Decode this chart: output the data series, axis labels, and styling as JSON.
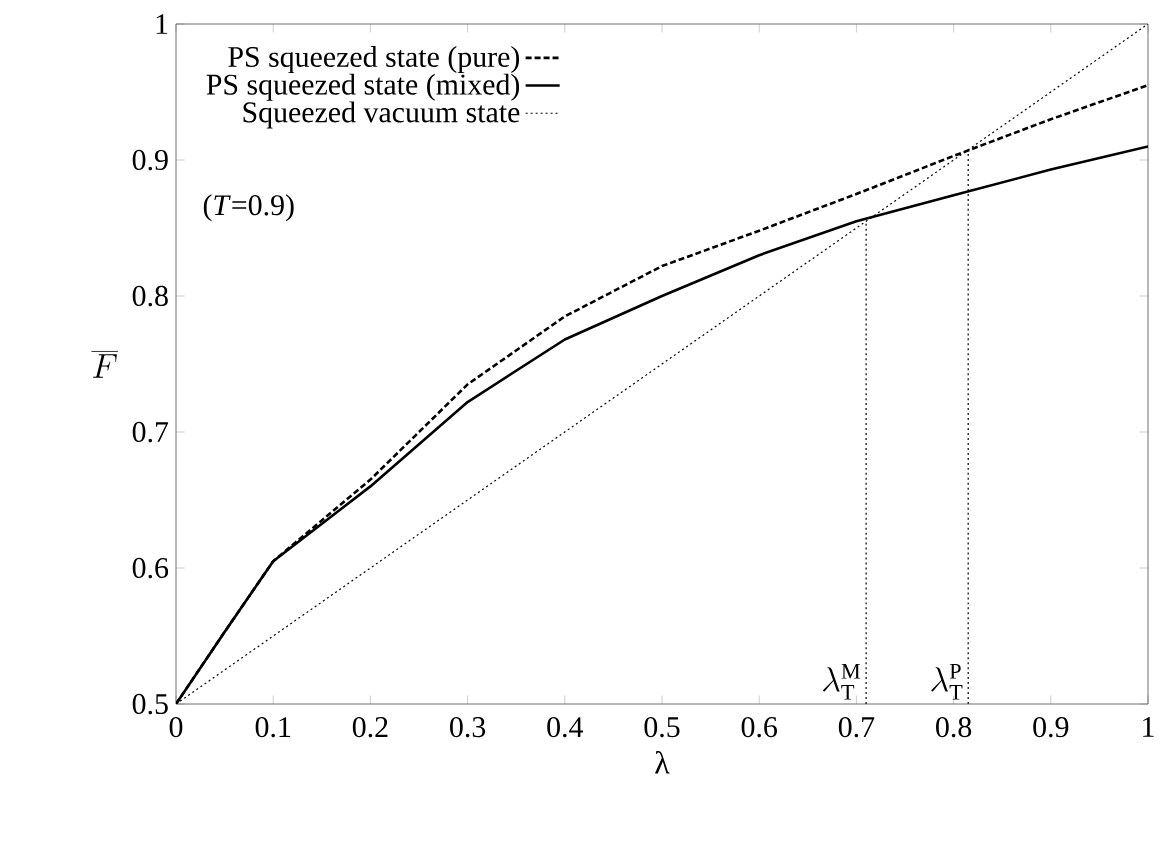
{
  "chart_data": {
    "type": "line",
    "xlabel": "λ",
    "ylabel": "\\overline{F}",
    "x": [
      0,
      0.05,
      0.1,
      0.2,
      0.3,
      0.4,
      0.5,
      0.6,
      0.7,
      0.8,
      0.9,
      1
    ],
    "series": [
      {
        "name": "PS squeezed state (pure)",
        "color": "#000000",
        "line_style": "dashed",
        "values": [
          0.5,
          0.553,
          0.605,
          0.665,
          0.735,
          0.785,
          0.822,
          0.848,
          0.875,
          0.903,
          0.93,
          0.955
        ]
      },
      {
        "name": "PS squeezed state (mixed)",
        "color": "#000000",
        "line_style": "solid",
        "values": [
          0.5,
          0.553,
          0.605,
          0.66,
          0.722,
          0.768,
          0.8,
          0.83,
          0.855,
          0.874,
          0.893,
          0.91
        ]
      },
      {
        "name": "Squeezed vacuum state",
        "color": "#000000",
        "line_style": "dotted",
        "x": [
          0,
          1
        ],
        "values": [
          0.5,
          1
        ]
      },
      {
        "color": "#000000",
        "line_style": "dotted",
        "x": [
          0.71,
          0.71
        ],
        "values": [
          0.5,
          0.855
        ]
      },
      {
        "color": "#000000",
        "line_style": "dotted",
        "x": [
          0.815,
          0.815
        ],
        "values": [
          0.5,
          0.907
        ]
      }
    ],
    "annotations": [
      {
        "text": "\\lambda_{\\mathrm{T}}^{\\mathrm{M}}",
        "x": 0.71,
        "y": 0.5
      },
      {
        "text": "\\lambda_{\\mathrm{T}}^{\\mathrm{P}}",
        "x": 0.815,
        "y": 0.5
      },
      "(*T*=0.9)"
    ],
    "xlim": [
      0,
      1
    ],
    "ylim": [
      0.5,
      1
    ],
    "xticks": [
      0,
      0.1,
      0.2,
      0.3,
      0.4,
      0.5,
      0.6,
      0.7,
      0.8,
      0.9,
      1
    ],
    "yticks": [
      0.5,
      0.6,
      0.7,
      0.8,
      0.9,
      1
    ],
    "legend": "top left"
  }
}
